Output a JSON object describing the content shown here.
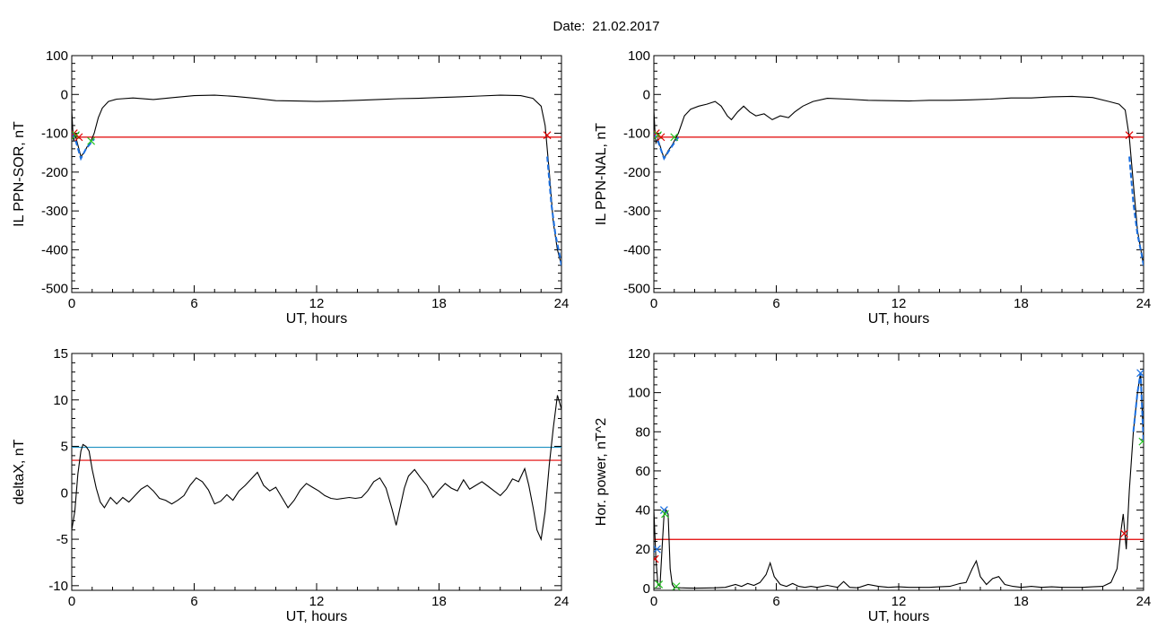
{
  "figure": {
    "title_prefix": "Date:",
    "date": "21.02.2017"
  },
  "colors": {
    "trace": "#000000",
    "threshold_red": "#e00000",
    "threshold_blue": "#1a8fc0",
    "marker_red": "#e00000",
    "marker_green": "#22c422",
    "marker_blue": "#1a6fe0",
    "highlight": "#1a6fe0"
  },
  "chart_data": [
    {
      "id": "il_sor",
      "type": "line",
      "xlabel": "UT, hours",
      "ylabel": "IL PPN-SOR, nT",
      "xlim": [
        0,
        24
      ],
      "ylim": [
        -510,
        100
      ],
      "xticks": [
        0,
        6,
        12,
        18,
        24
      ],
      "yticks": [
        100,
        0,
        -100,
        -200,
        -300,
        -400,
        -500
      ],
      "series_points": [
        [
          0.0,
          -40
        ],
        [
          0.05,
          -90
        ],
        [
          0.1,
          -120
        ],
        [
          0.15,
          -100
        ],
        [
          0.2,
          -110
        ],
        [
          0.3,
          -130
        ],
        [
          0.45,
          -160
        ],
        [
          0.6,
          -150
        ],
        [
          0.75,
          -135
        ],
        [
          0.9,
          -125
        ],
        [
          1.1,
          -100
        ],
        [
          1.3,
          -60
        ],
        [
          1.5,
          -35
        ],
        [
          1.8,
          -18
        ],
        [
          2.2,
          -12
        ],
        [
          3.0,
          -9
        ],
        [
          4.0,
          -13
        ],
        [
          5.0,
          -8
        ],
        [
          6.0,
          -3
        ],
        [
          7.0,
          -2
        ],
        [
          8.0,
          -5
        ],
        [
          9.0,
          -10
        ],
        [
          10.0,
          -16
        ],
        [
          11.0,
          -17
        ],
        [
          12.0,
          -18
        ],
        [
          13.0,
          -17
        ],
        [
          14.0,
          -15
        ],
        [
          15.0,
          -13
        ],
        [
          16.0,
          -11
        ],
        [
          17.0,
          -10
        ],
        [
          18.0,
          -8
        ],
        [
          19.0,
          -6
        ],
        [
          20.0,
          -4
        ],
        [
          21.0,
          -2
        ],
        [
          22.0,
          -3
        ],
        [
          22.6,
          -10
        ],
        [
          23.0,
          -30
        ],
        [
          23.2,
          -80
        ],
        [
          23.4,
          -200
        ],
        [
          23.6,
          -330
        ],
        [
          23.8,
          -400
        ],
        [
          24.0,
          -440
        ]
      ],
      "highlights": [
        [
          [
            0.0,
            -100
          ],
          [
            0.2,
            -120
          ],
          [
            0.45,
            -165
          ],
          [
            0.7,
            -140
          ],
          [
            1.1,
            -115
          ]
        ],
        [
          [
            23.3,
            -160
          ],
          [
            23.5,
            -280
          ],
          [
            23.7,
            -360
          ],
          [
            23.9,
            -410
          ],
          [
            24.0,
            -440
          ]
        ]
      ],
      "thresholds": [
        {
          "y": -110,
          "color": "threshold_red"
        }
      ],
      "markers": [
        {
          "x": 0.1,
          "y": -100,
          "color": "marker_red"
        },
        {
          "x": 0.2,
          "y": -105,
          "color": "marker_green"
        },
        {
          "x": 0.35,
          "y": -110,
          "color": "marker_red"
        },
        {
          "x": 0.95,
          "y": -120,
          "color": "marker_green"
        },
        {
          "x": 23.3,
          "y": -105,
          "color": "marker_red"
        }
      ]
    },
    {
      "id": "il_nal",
      "type": "line",
      "xlabel": "UT, hours",
      "ylabel": "IL PPN-NAL, nT",
      "xlim": [
        0,
        24
      ],
      "ylim": [
        -510,
        100
      ],
      "xticks": [
        0,
        6,
        12,
        18,
        24
      ],
      "yticks": [
        100,
        0,
        -100,
        -200,
        -300,
        -400,
        -500
      ],
      "series_points": [
        [
          0.0,
          -40
        ],
        [
          0.05,
          -90
        ],
        [
          0.1,
          -125
        ],
        [
          0.2,
          -115
        ],
        [
          0.35,
          -140
        ],
        [
          0.5,
          -165
        ],
        [
          0.7,
          -145
        ],
        [
          0.9,
          -130
        ],
        [
          1.2,
          -100
        ],
        [
          1.5,
          -55
        ],
        [
          1.8,
          -38
        ],
        [
          2.2,
          -30
        ],
        [
          2.6,
          -25
        ],
        [
          3.0,
          -18
        ],
        [
          3.3,
          -30
        ],
        [
          3.6,
          -55
        ],
        [
          3.8,
          -65
        ],
        [
          4.1,
          -45
        ],
        [
          4.4,
          -30
        ],
        [
          4.7,
          -45
        ],
        [
          5.0,
          -55
        ],
        [
          5.4,
          -50
        ],
        [
          5.8,
          -65
        ],
        [
          6.2,
          -55
        ],
        [
          6.6,
          -60
        ],
        [
          6.9,
          -45
        ],
        [
          7.3,
          -30
        ],
        [
          7.8,
          -18
        ],
        [
          8.5,
          -10
        ],
        [
          9.5,
          -12
        ],
        [
          10.5,
          -15
        ],
        [
          11.5,
          -16
        ],
        [
          12.5,
          -17
        ],
        [
          13.5,
          -15
        ],
        [
          14.5,
          -15
        ],
        [
          15.5,
          -14
        ],
        [
          16.5,
          -12
        ],
        [
          17.5,
          -9
        ],
        [
          18.5,
          -9
        ],
        [
          19.5,
          -6
        ],
        [
          20.5,
          -5
        ],
        [
          21.5,
          -8
        ],
        [
          22.3,
          -18
        ],
        [
          22.8,
          -25
        ],
        [
          23.1,
          -40
        ],
        [
          23.3,
          -110
        ],
        [
          23.5,
          -230
        ],
        [
          23.7,
          -350
        ],
        [
          23.9,
          -410
        ],
        [
          24.0,
          -440
        ]
      ],
      "highlights": [
        [
          [
            0.0,
            -100
          ],
          [
            0.2,
            -120
          ],
          [
            0.5,
            -165
          ],
          [
            0.8,
            -140
          ],
          [
            1.2,
            -110
          ]
        ],
        [
          [
            23.3,
            -160
          ],
          [
            23.5,
            -280
          ],
          [
            23.7,
            -360
          ],
          [
            23.9,
            -410
          ],
          [
            24.0,
            -440
          ]
        ]
      ],
      "thresholds": [
        {
          "y": -110,
          "color": "threshold_red"
        }
      ],
      "markers": [
        {
          "x": 0.1,
          "y": -100,
          "color": "marker_red"
        },
        {
          "x": 0.2,
          "y": -105,
          "color": "marker_green"
        },
        {
          "x": 0.35,
          "y": -110,
          "color": "marker_red"
        },
        {
          "x": 1.0,
          "y": -110,
          "color": "marker_green"
        },
        {
          "x": 23.3,
          "y": -105,
          "color": "marker_red"
        }
      ]
    },
    {
      "id": "deltax",
      "type": "line",
      "xlabel": "UT, hours",
      "ylabel": "deltaX, nT",
      "xlim": [
        0,
        24
      ],
      "ylim": [
        -10.5,
        15
      ],
      "xticks": [
        0,
        6,
        12,
        18,
        24
      ],
      "yticks": [
        15,
        10,
        5,
        0,
        -5,
        -10
      ],
      "series_points": [
        [
          0.0,
          -4
        ],
        [
          0.15,
          -2
        ],
        [
          0.3,
          2
        ],
        [
          0.45,
          4.5
        ],
        [
          0.55,
          5.2
        ],
        [
          0.7,
          5.0
        ],
        [
          0.85,
          4.5
        ],
        [
          1.0,
          2.5
        ],
        [
          1.2,
          0.5
        ],
        [
          1.4,
          -1.0
        ],
        [
          1.6,
          -1.6
        ],
        [
          1.9,
          -0.5
        ],
        [
          2.2,
          -1.2
        ],
        [
          2.5,
          -0.5
        ],
        [
          2.8,
          -1.0
        ],
        [
          3.1,
          -0.3
        ],
        [
          3.4,
          0.4
        ],
        [
          3.7,
          0.8
        ],
        [
          4.0,
          0.2
        ],
        [
          4.3,
          -0.6
        ],
        [
          4.6,
          -0.8
        ],
        [
          4.9,
          -1.2
        ],
        [
          5.2,
          -0.8
        ],
        [
          5.5,
          -0.3
        ],
        [
          5.8,
          0.8
        ],
        [
          6.1,
          1.6
        ],
        [
          6.4,
          1.2
        ],
        [
          6.7,
          0.3
        ],
        [
          7.0,
          -1.2
        ],
        [
          7.3,
          -0.9
        ],
        [
          7.6,
          -0.2
        ],
        [
          7.9,
          -0.8
        ],
        [
          8.2,
          0.2
        ],
        [
          8.5,
          0.8
        ],
        [
          8.8,
          1.5
        ],
        [
          9.1,
          2.2
        ],
        [
          9.4,
          0.8
        ],
        [
          9.7,
          0.2
        ],
        [
          10.0,
          0.6
        ],
        [
          10.3,
          -0.5
        ],
        [
          10.6,
          -1.6
        ],
        [
          10.9,
          -0.8
        ],
        [
          11.2,
          0.3
        ],
        [
          11.5,
          1.0
        ],
        [
          11.8,
          0.6
        ],
        [
          12.1,
          0.2
        ],
        [
          12.4,
          -0.3
        ],
        [
          12.7,
          -0.6
        ],
        [
          13.0,
          -0.7
        ],
        [
          13.3,
          -0.6
        ],
        [
          13.6,
          -0.5
        ],
        [
          13.9,
          -0.6
        ],
        [
          14.2,
          -0.5
        ],
        [
          14.5,
          0.2
        ],
        [
          14.8,
          1.2
        ],
        [
          15.1,
          1.6
        ],
        [
          15.4,
          0.5
        ],
        [
          15.7,
          -1.8
        ],
        [
          15.9,
          -3.5
        ],
        [
          16.1,
          -1.5
        ],
        [
          16.3,
          0.5
        ],
        [
          16.5,
          1.8
        ],
        [
          16.8,
          2.5
        ],
        [
          17.1,
          1.6
        ],
        [
          17.4,
          0.8
        ],
        [
          17.7,
          -0.5
        ],
        [
          18.0,
          0.3
        ],
        [
          18.3,
          1.0
        ],
        [
          18.6,
          0.5
        ],
        [
          18.9,
          0.2
        ],
        [
          19.2,
          1.4
        ],
        [
          19.5,
          0.4
        ],
        [
          19.8,
          0.8
        ],
        [
          20.1,
          1.2
        ],
        [
          20.4,
          0.7
        ],
        [
          20.7,
          0.2
        ],
        [
          21.0,
          -0.3
        ],
        [
          21.3,
          0.4
        ],
        [
          21.6,
          1.5
        ],
        [
          21.9,
          1.2
        ],
        [
          22.2,
          2.6
        ],
        [
          22.4,
          0.8
        ],
        [
          22.6,
          -1.5
        ],
        [
          22.8,
          -4.0
        ],
        [
          23.0,
          -5.0
        ],
        [
          23.2,
          -2.0
        ],
        [
          23.4,
          3.0
        ],
        [
          23.6,
          7.0
        ],
        [
          23.8,
          10.5
        ],
        [
          24.0,
          9.0
        ]
      ],
      "highlights": [],
      "thresholds": [
        {
          "y": 4.9,
          "color": "threshold_blue"
        },
        {
          "y": 3.5,
          "color": "threshold_red"
        }
      ],
      "markers": []
    },
    {
      "id": "hor_power",
      "type": "line",
      "xlabel": "UT, hours",
      "ylabel": "Hor. power, nT^2",
      "xlim": [
        0,
        24
      ],
      "ylim": [
        -1,
        120
      ],
      "xticks": [
        0,
        6,
        12,
        18,
        24
      ],
      "yticks": [
        120,
        100,
        80,
        60,
        40,
        20,
        0
      ],
      "series_points": [
        [
          0.0,
          40
        ],
        [
          0.1,
          15
        ],
        [
          0.2,
          2
        ],
        [
          0.3,
          1
        ],
        [
          0.4,
          20
        ],
        [
          0.5,
          38
        ],
        [
          0.6,
          40
        ],
        [
          0.7,
          38
        ],
        [
          0.8,
          10
        ],
        [
          0.9,
          2
        ],
        [
          1.0,
          0.5
        ],
        [
          1.3,
          0.3
        ],
        [
          1.6,
          0.2
        ],
        [
          2.0,
          0.1
        ],
        [
          2.5,
          0.2
        ],
        [
          3.0,
          0.3
        ],
        [
          3.5,
          0.5
        ],
        [
          4.0,
          2.0
        ],
        [
          4.3,
          1.0
        ],
        [
          4.6,
          2.5
        ],
        [
          4.9,
          1.5
        ],
        [
          5.2,
          3.0
        ],
        [
          5.5,
          7.0
        ],
        [
          5.7,
          13.0
        ],
        [
          5.9,
          6.0
        ],
        [
          6.2,
          2.0
        ],
        [
          6.5,
          1.0
        ],
        [
          6.8,
          2.5
        ],
        [
          7.1,
          1.0
        ],
        [
          7.4,
          0.5
        ],
        [
          7.7,
          1.0
        ],
        [
          8.0,
          0.5
        ],
        [
          8.5,
          1.5
        ],
        [
          9.0,
          0.5
        ],
        [
          9.3,
          3.5
        ],
        [
          9.6,
          0.5
        ],
        [
          10.0,
          0.3
        ],
        [
          10.5,
          2.0
        ],
        [
          11.0,
          1.0
        ],
        [
          11.5,
          0.5
        ],
        [
          12.0,
          0.8
        ],
        [
          12.5,
          0.5
        ],
        [
          13.0,
          0.5
        ],
        [
          13.5,
          0.5
        ],
        [
          14.0,
          0.8
        ],
        [
          14.5,
          1.0
        ],
        [
          15.0,
          2.5
        ],
        [
          15.3,
          3.0
        ],
        [
          15.6,
          10.0
        ],
        [
          15.8,
          14.0
        ],
        [
          16.0,
          6.0
        ],
        [
          16.3,
          2.0
        ],
        [
          16.6,
          5.0
        ],
        [
          16.9,
          6.0
        ],
        [
          17.2,
          2.0
        ],
        [
          17.6,
          1.0
        ],
        [
          18.0,
          0.5
        ],
        [
          18.5,
          1.0
        ],
        [
          19.0,
          0.5
        ],
        [
          19.5,
          0.8
        ],
        [
          20.0,
          0.5
        ],
        [
          20.5,
          0.5
        ],
        [
          21.0,
          0.5
        ],
        [
          21.5,
          0.8
        ],
        [
          22.0,
          1.0
        ],
        [
          22.4,
          3.0
        ],
        [
          22.7,
          10.0
        ],
        [
          22.9,
          30.0
        ],
        [
          23.0,
          38.0
        ],
        [
          23.15,
          20.0
        ],
        [
          23.3,
          50.0
        ],
        [
          23.5,
          80.0
        ],
        [
          23.7,
          100.0
        ],
        [
          23.85,
          110.0
        ],
        [
          24.0,
          75.0
        ]
      ],
      "highlights": [
        [
          [
            23.5,
            80
          ],
          [
            23.7,
            100
          ],
          [
            23.85,
            110
          ],
          [
            24.0,
            75
          ]
        ]
      ],
      "thresholds": [
        {
          "y": 25,
          "color": "threshold_red"
        }
      ],
      "markers": [
        {
          "x": 0.05,
          "y": 15,
          "color": "marker_red"
        },
        {
          "x": 0.15,
          "y": 20,
          "color": "marker_blue"
        },
        {
          "x": 0.25,
          "y": 2,
          "color": "marker_green"
        },
        {
          "x": 0.5,
          "y": 40,
          "color": "marker_blue"
        },
        {
          "x": 0.55,
          "y": 38,
          "color": "marker_green"
        },
        {
          "x": 1.1,
          "y": 1,
          "color": "marker_green"
        },
        {
          "x": 23.05,
          "y": 28,
          "color": "marker_red"
        },
        {
          "x": 23.85,
          "y": 110,
          "color": "marker_blue"
        },
        {
          "x": 23.95,
          "y": 75,
          "color": "marker_green"
        }
      ]
    }
  ]
}
